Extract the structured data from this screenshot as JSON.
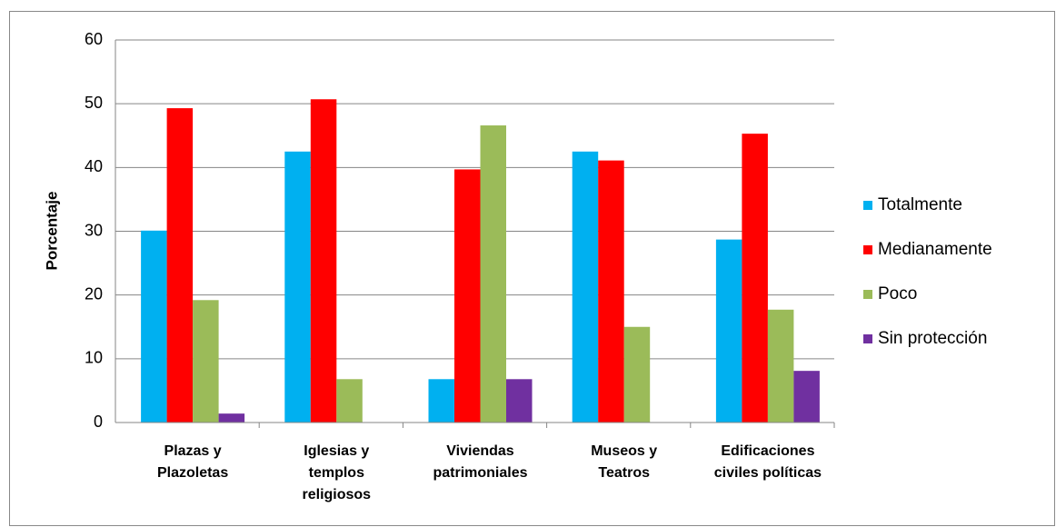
{
  "chart_data": {
    "type": "bar",
    "y_label": "Porcentaje",
    "categories": [
      "Plazas y\nPlazoletas",
      "Iglesias y\ntemplos\nreligiosos",
      "Viviendas\npatrimoniales",
      "Museos y\nTeatros",
      "Edificaciones\nciviles políticas"
    ],
    "series": [
      {
        "name": "Totalmente",
        "color": "#00b0f0",
        "values": [
          30.1,
          42.5,
          6.8,
          42.5,
          28.7
        ]
      },
      {
        "name": "Medianamente",
        "color": "#ff0000",
        "values": [
          49.3,
          50.7,
          39.7,
          41.1,
          45.3
        ]
      },
      {
        "name": "Poco",
        "color": "#9bbb59",
        "values": [
          19.2,
          6.8,
          46.6,
          15.0,
          17.7
        ]
      },
      {
        "name": "Sin protección",
        "color": "#7030a0",
        "values": [
          1.4,
          0,
          6.8,
          0,
          8.1
        ]
      }
    ],
    "ylim": [
      0,
      60
    ],
    "yticks": [
      0,
      10,
      20,
      30,
      40,
      50,
      60
    ],
    "grid": true,
    "legend": "right"
  }
}
